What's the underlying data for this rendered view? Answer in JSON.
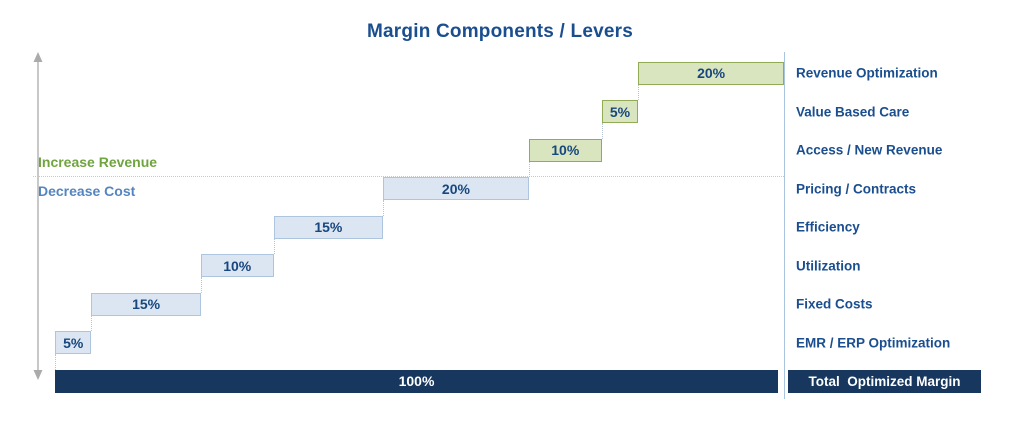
{
  "title": "Margin Components / Levers",
  "chart_data": {
    "type": "bar",
    "subtype": "waterfall",
    "title": "Margin Components / Levers",
    "orientation": "horizontal-stepped",
    "axis_range": [
      0,
      100
    ],
    "unit": "%",
    "grid": false,
    "rows": [
      {
        "label": "Revenue Optimization",
        "value": 20,
        "display": "20%",
        "group": "revenue"
      },
      {
        "label": "Value Based Care",
        "value": 5,
        "display": "5%",
        "group": "revenue"
      },
      {
        "label": "Access / New Revenue",
        "value": 10,
        "display": "10%",
        "group": "revenue"
      },
      {
        "label": "Pricing / Contracts",
        "value": 20,
        "display": "20%",
        "group": "cost"
      },
      {
        "label": "Efficiency",
        "value": 15,
        "display": "15%",
        "group": "cost"
      },
      {
        "label": "Utilization",
        "value": 10,
        "display": "10%",
        "group": "cost"
      },
      {
        "label": "Fixed Costs",
        "value": 15,
        "display": "15%",
        "group": "cost"
      },
      {
        "label": "EMR / ERP Optimization",
        "value": 5,
        "display": "5%",
        "group": "cost"
      },
      {
        "label": "Total  Optimized Margin",
        "value": 100,
        "display": "100%",
        "group": "total"
      }
    ],
    "group_labels": {
      "revenue": "Increase Revenue",
      "cost": "Decrease Cost"
    },
    "legend_position": "left"
  },
  "colors": {
    "title_text": "#1a4e8f",
    "category_text": "#1a4e8f",
    "bar_value_text": "#17477e",
    "revenue_fill": "#d9e5bf",
    "revenue_border": "#92ab56",
    "cost_fill": "#dce6f2",
    "cost_border": "#aec5e0",
    "total_fill": "#17375e",
    "total_text": "#ffffff",
    "increase_revenue_text": "#6fa43f",
    "decrease_cost_text": "#5585c0",
    "axis_line": "#a9c4de",
    "arrow": "#ababab",
    "dotted_line": "#c3c9cf"
  }
}
